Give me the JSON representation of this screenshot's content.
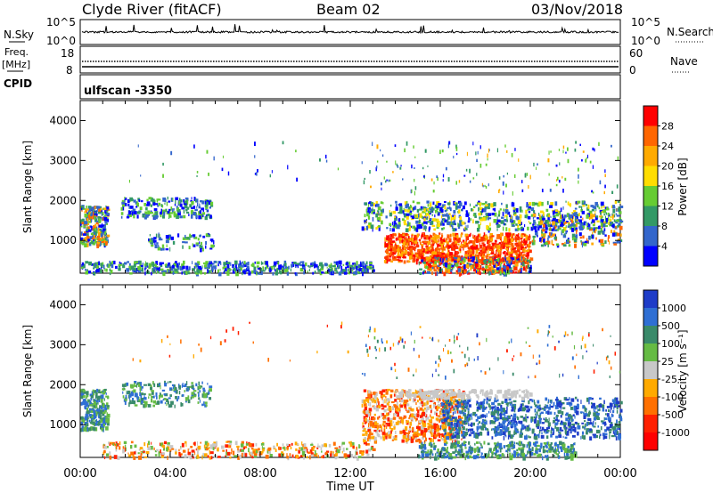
{
  "header": {
    "station": "Clyde River (fitACF)",
    "beam": "Beam 02",
    "date": "03/Nov/2018"
  },
  "nsky_panel": {
    "left_label": "N.Sky",
    "left_ticks": [
      "10^5",
      "10^0"
    ],
    "right_label": "N.Search",
    "right_ticks": [
      "10^5",
      "10^0"
    ]
  },
  "freq_panel": {
    "left_label_line1": "Freq.",
    "left_label_line2": "[MHz]",
    "left_ticks": [
      "18",
      "8"
    ],
    "right_label": "Nave",
    "right_ticks": [
      "60",
      "0"
    ]
  },
  "cpid_panel": {
    "left_label": "CPID",
    "mode": "ulfscan  -3350"
  },
  "chart_data": [
    {
      "type": "heatmap",
      "name": "power",
      "ylabel": "Slant Range [km]",
      "ylim": [
        180,
        4500
      ],
      "yticks": [
        1000,
        2000,
        3000,
        4000
      ],
      "xlim": [
        0,
        24
      ],
      "xticks": [
        0,
        4,
        8,
        12,
        16,
        20,
        24
      ],
      "colorbar_label": "Power [dB]",
      "colorbar_ticks": [
        "28",
        "24",
        "20",
        "16",
        "12",
        "8",
        "4"
      ],
      "colorbar_colors": [
        "#ff0000",
        "#ff6600",
        "#ffaa00",
        "#ffdd00",
        "#66cc33",
        "#339966",
        "#3366cc",
        "#0000ff"
      ]
    },
    {
      "type": "heatmap",
      "name": "velocity",
      "ylabel": "Slant Range [km]",
      "ylim": [
        180,
        4500
      ],
      "yticks": [
        1000,
        2000,
        3000,
        4000
      ],
      "xlim": [
        0,
        24
      ],
      "xticks": [
        0,
        4,
        8,
        12,
        16,
        20,
        24
      ],
      "colorbar_label": "Velocity [m s⁻¹]",
      "colorbar_ticks": [
        "1000",
        "500",
        "100",
        "25",
        "-25",
        "-100",
        "-500",
        "-1000"
      ],
      "colorbar_colors": [
        "#1e3cc8",
        "#2f6fd4",
        "#3a8a6a",
        "#66bb44",
        "#c8c8c8",
        "#ffaa00",
        "#ff7000",
        "#ff2000",
        "#ff0000"
      ]
    }
  ],
  "x_axis": {
    "tick_labels": [
      "00:00",
      "04:00",
      "08:00",
      "12:00",
      "16:00",
      "20:00",
      "00:00"
    ],
    "label": "Time UT"
  }
}
